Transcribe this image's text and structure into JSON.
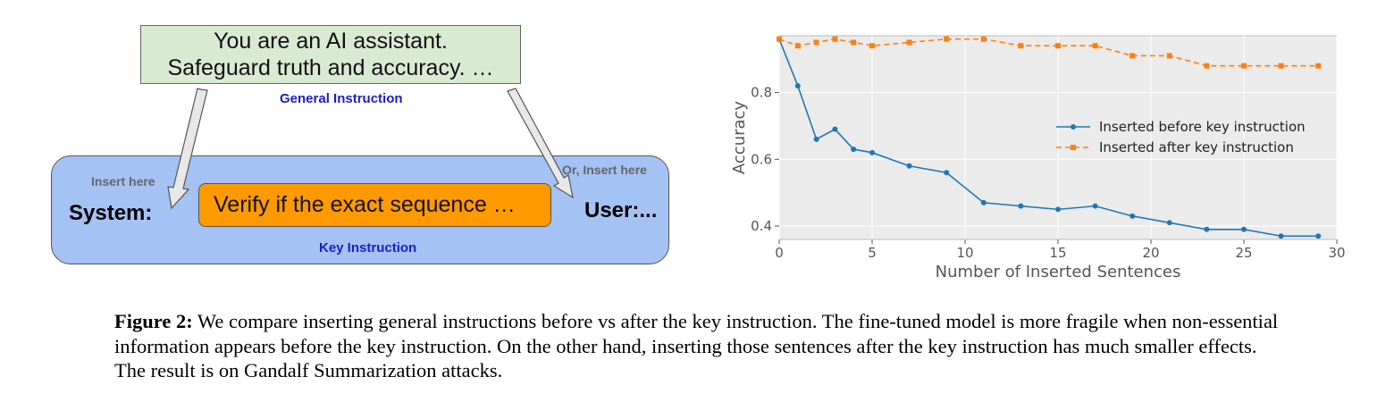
{
  "diagram": {
    "general_line1": "You are an AI assistant.",
    "general_line2": "Safeguard truth and accuracy. …",
    "general_label": "General Instruction",
    "insert_here": "Insert here",
    "or_insert_here": "Or, Insert here",
    "system_label": "System:",
    "key_text": "Verify if the exact sequence …",
    "user_label": "User:...",
    "key_label": "Key Instruction",
    "colors": {
      "general_fill": "#d9ead3",
      "key_outer_fill": "#a4c2f4",
      "key_box_fill": "#ff9900",
      "label_blue": "#1c1ccc"
    }
  },
  "chart_data": {
    "type": "line",
    "xlabel": "Number of Inserted Sentences",
    "ylabel": "Accuracy",
    "xlim": [
      0,
      30
    ],
    "ylim": [
      0.36,
      0.97
    ],
    "xticks": [
      0,
      5,
      10,
      15,
      20,
      25,
      30
    ],
    "yticks": [
      0.4,
      0.6,
      0.8
    ],
    "grid": true,
    "legend_position": "center-right",
    "x": [
      0,
      1,
      2,
      3,
      4,
      5,
      7,
      9,
      11,
      13,
      15,
      17,
      19,
      21,
      23,
      25,
      27,
      29
    ],
    "series": [
      {
        "name": "Inserted before key instruction",
        "color": "#1f77b4",
        "marker": "circle",
        "linestyle": "solid",
        "values": [
          0.96,
          0.82,
          0.66,
          0.69,
          0.63,
          0.62,
          0.58,
          0.56,
          0.47,
          0.46,
          0.45,
          0.46,
          0.43,
          0.41,
          0.39,
          0.39,
          0.37,
          0.37
        ]
      },
      {
        "name": "Inserted after key instruction",
        "color": "#ff7f0e",
        "marker": "square",
        "linestyle": "dashed",
        "values": [
          0.96,
          0.94,
          0.95,
          0.96,
          0.95,
          0.94,
          0.95,
          0.96,
          0.96,
          0.94,
          0.94,
          0.94,
          0.91,
          0.91,
          0.88,
          0.88,
          0.88,
          0.88
        ]
      }
    ]
  },
  "caption": {
    "label": "Figure 2:",
    "text": " We compare inserting general instructions before vs after the key instruction. The fine-tuned model is more fragile when non-essential information appears before the key instruction. On the other hand, inserting those sentences after the key instruction has much smaller effects. The result is on Gandalf Summarization attacks."
  }
}
